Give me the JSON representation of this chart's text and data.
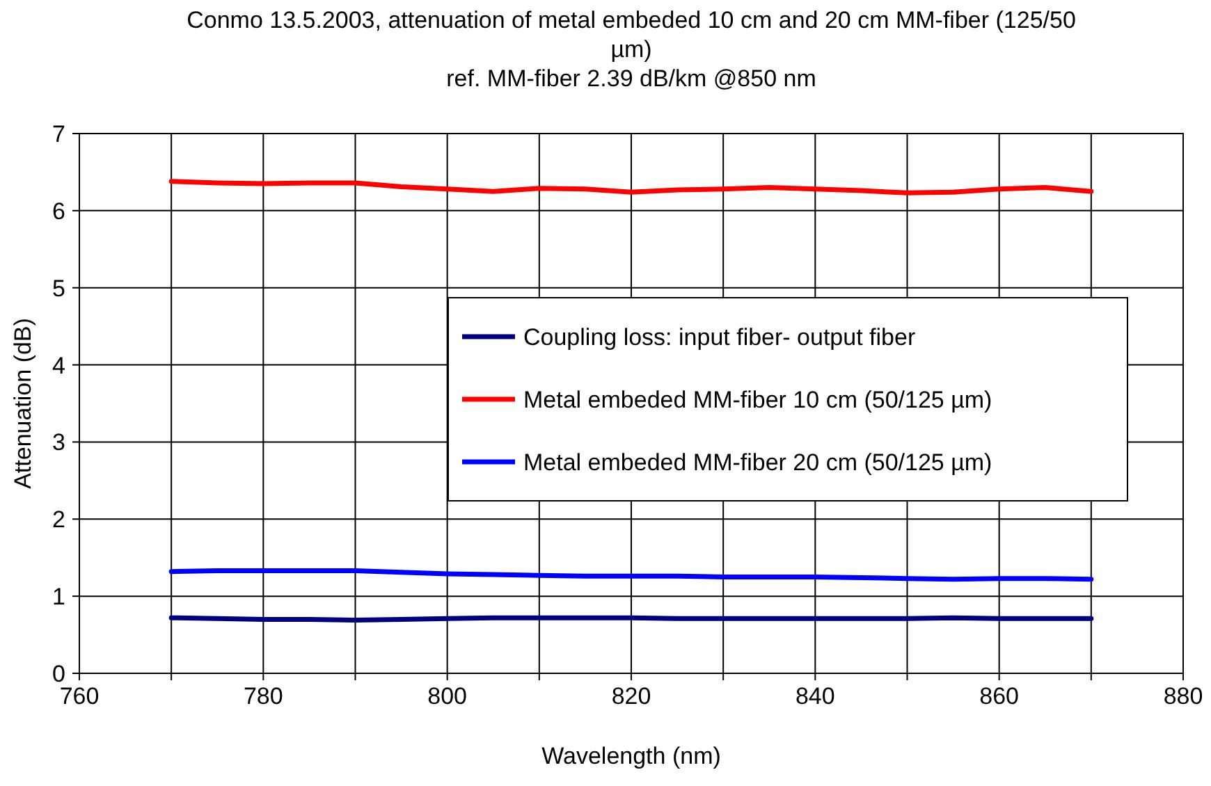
{
  "chart_data": {
    "type": "line",
    "title": "Conmo 13.5.2003, attenuation of metal embeded 10 cm and 20 cm MM-fiber (125/50 µm)",
    "subtitle": "ref. MM-fiber 2.39 dB/km @850 nm",
    "xlabel": "Wavelength (nm)",
    "ylabel": "Attenuation (dB)",
    "xlim": [
      760,
      880
    ],
    "xticks": [
      760,
      {
        "value": 770,
        "label": null
      },
      780,
      {
        "value": 790,
        "label": null
      },
      800,
      {
        "value": 810,
        "label": null
      },
      820,
      {
        "value": 830,
        "label": null
      },
      840,
      {
        "value": 850,
        "label": null
      },
      860,
      {
        "value": 870,
        "label": null
      },
      880
    ],
    "ylim": [
      0,
      7
    ],
    "yticks": [
      0,
      1,
      2,
      3,
      4,
      5,
      6,
      7
    ],
    "grid": true,
    "legend": "right",
    "marker": "none",
    "line_style": "solid",
    "x": [
      770,
      775,
      780,
      785,
      790,
      795,
      800,
      805,
      810,
      815,
      820,
      825,
      830,
      835,
      840,
      845,
      850,
      855,
      860,
      865,
      870
    ],
    "series": [
      {
        "name": "Coupling loss: input fiber- output fiber",
        "color": "#000080",
        "values": [
          0.72,
          0.71,
          0.7,
          0.7,
          0.69,
          0.7,
          0.71,
          0.72,
          0.72,
          0.72,
          0.72,
          0.71,
          0.71,
          0.71,
          0.71,
          0.71,
          0.71,
          0.72,
          0.71,
          0.71,
          0.71
        ]
      },
      {
        "name": "Metal embeded MM-fiber 10 cm (50/125 µm)",
        "color": "#ff0000",
        "values": [
          6.38,
          6.36,
          6.35,
          6.36,
          6.36,
          6.31,
          6.28,
          6.25,
          6.29,
          6.28,
          6.24,
          6.27,
          6.28,
          6.3,
          6.28,
          6.26,
          6.23,
          6.24,
          6.28,
          6.3,
          6.25
        ]
      },
      {
        "name": "Metal embeded MM-fiber 20 cm (50/125 µm)",
        "color": "#0000ff",
        "values": [
          1.32,
          1.33,
          1.33,
          1.33,
          1.33,
          1.31,
          1.29,
          1.28,
          1.27,
          1.26,
          1.26,
          1.26,
          1.25,
          1.25,
          1.25,
          1.24,
          1.23,
          1.22,
          1.23,
          1.23,
          1.22
        ]
      }
    ]
  }
}
